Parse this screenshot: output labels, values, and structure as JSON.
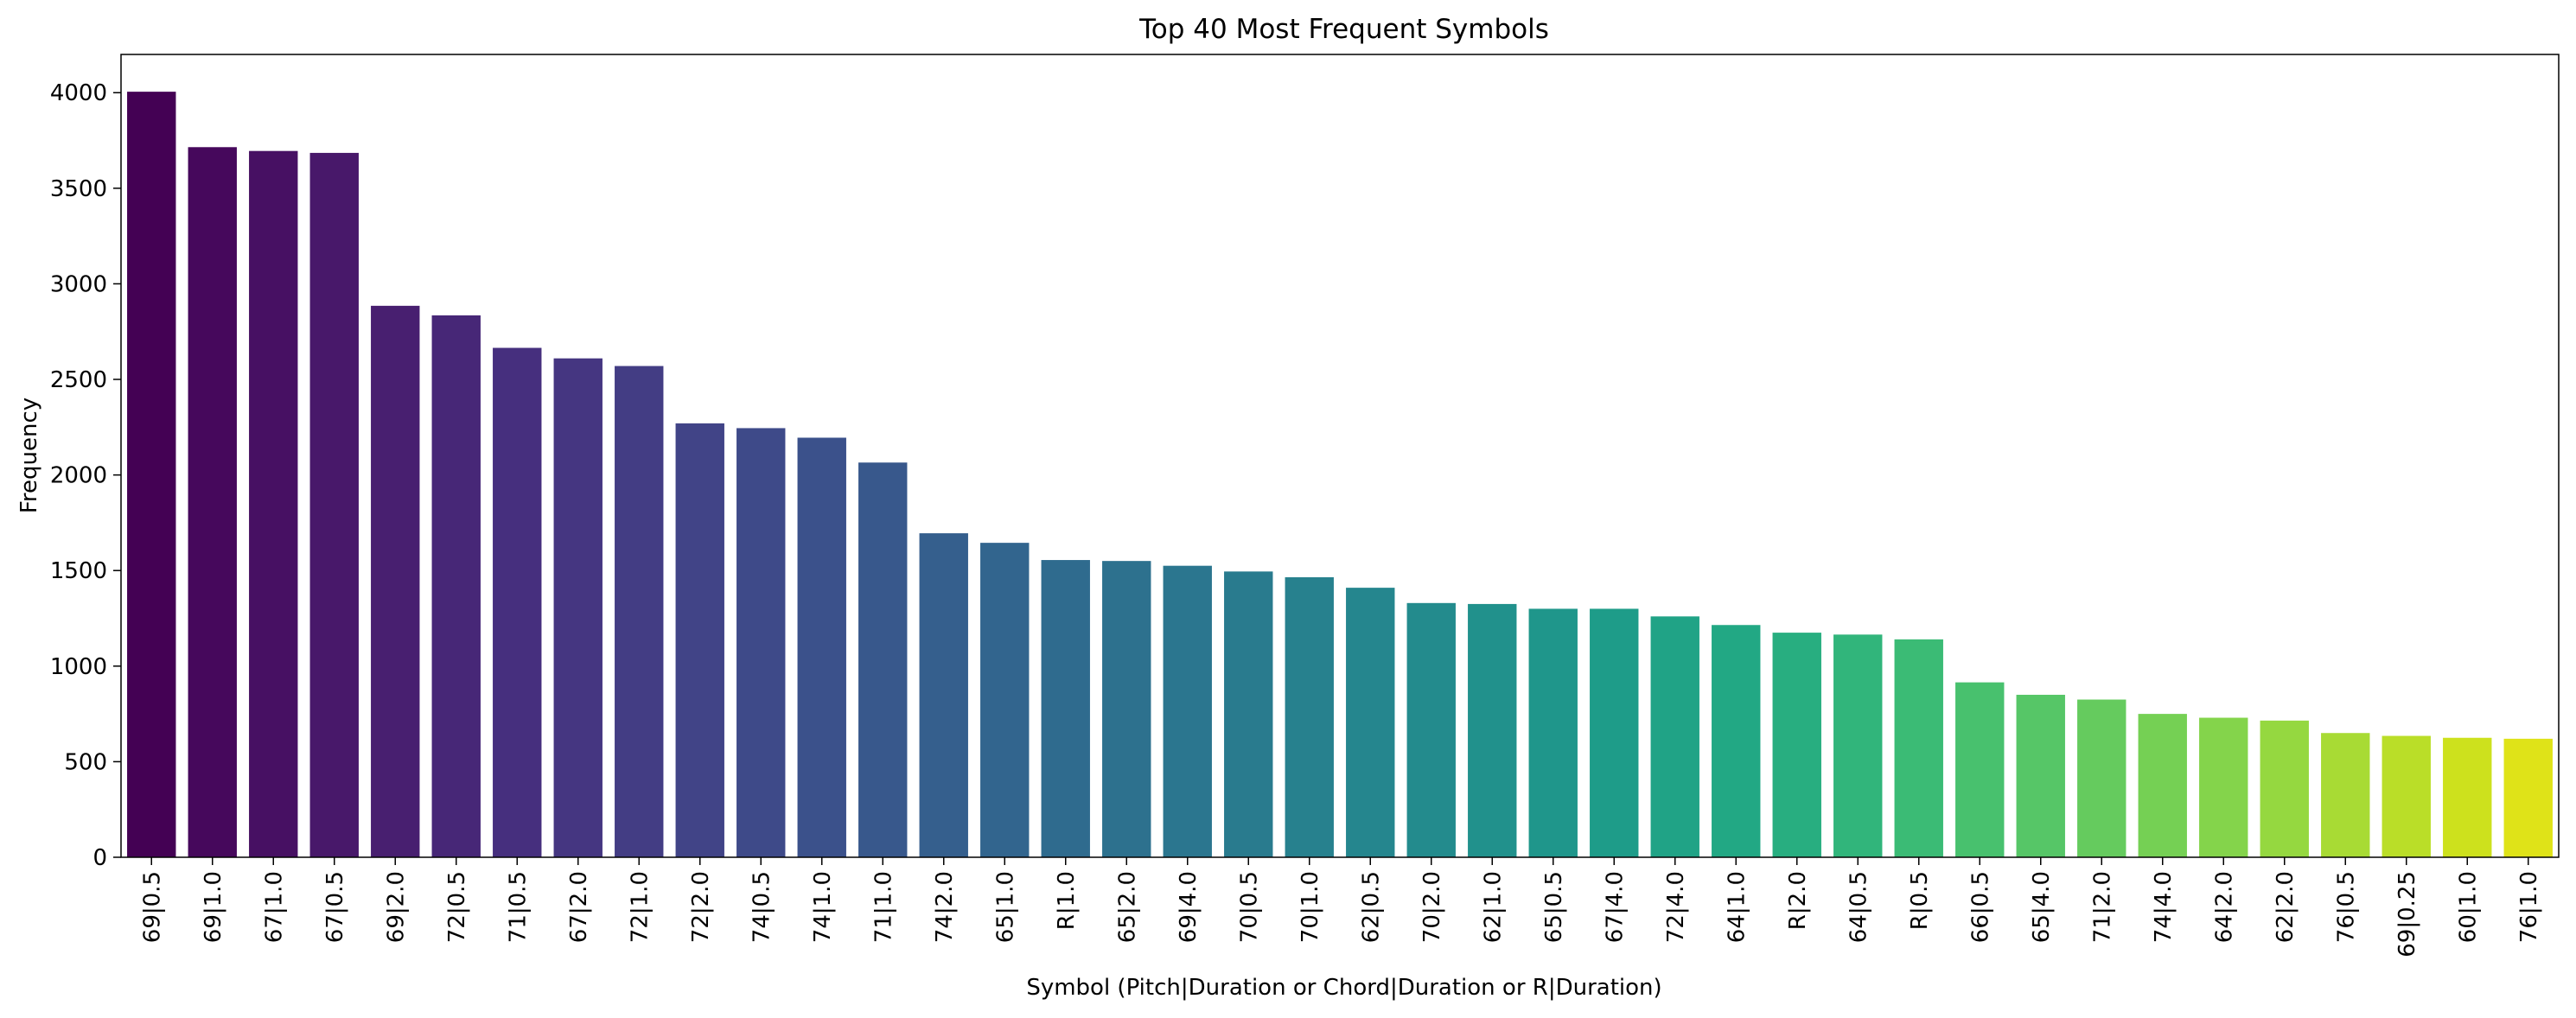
{
  "chart_data": {
    "type": "bar",
    "title": "Top 40 Most Frequent Symbols",
    "xlabel": "Symbol (Pitch|Duration or Chord|Duration or R|Duration)",
    "ylabel": "Frequency",
    "ylim": [
      0,
      4200
    ],
    "yticks": [
      0,
      500,
      1000,
      1500,
      2000,
      2500,
      3000,
      3500,
      4000
    ],
    "grid": false,
    "colormap": "viridis",
    "categories": [
      "69|0.5",
      "69|1.0",
      "67|1.0",
      "67|0.5",
      "69|2.0",
      "72|0.5",
      "71|0.5",
      "67|2.0",
      "72|1.0",
      "72|2.0",
      "74|0.5",
      "74|1.0",
      "71|1.0",
      "74|2.0",
      "65|1.0",
      "R|1.0",
      "65|2.0",
      "69|4.0",
      "70|0.5",
      "70|1.0",
      "62|0.5",
      "70|2.0",
      "62|1.0",
      "65|0.5",
      "67|4.0",
      "72|4.0",
      "64|1.0",
      "R|2.0",
      "64|0.5",
      "R|0.5",
      "66|0.5",
      "65|4.0",
      "71|2.0",
      "74|4.0",
      "64|2.0",
      "62|2.0",
      "76|0.5",
      "69|0.25",
      "60|1.0",
      "76|1.0"
    ],
    "values": [
      4005,
      3715,
      3695,
      3685,
      2885,
      2835,
      2665,
      2610,
      2570,
      2270,
      2245,
      2195,
      2065,
      1695,
      1645,
      1555,
      1550,
      1525,
      1495,
      1465,
      1410,
      1330,
      1325,
      1300,
      1300,
      1260,
      1215,
      1175,
      1165,
      1140,
      915,
      850,
      825,
      750,
      730,
      715,
      650,
      635,
      625,
      620
    ],
    "colors": [
      "#440154",
      "#46085c",
      "#471063",
      "#48186a",
      "#481f70",
      "#472777",
      "#462f7e",
      "#453681",
      "#433d84",
      "#414487",
      "#3e4a89",
      "#3b518b",
      "#38588c",
      "#355f8d",
      "#32658e",
      "#2f6b8e",
      "#2d718e",
      "#2b768f",
      "#297b8e",
      "#27818e",
      "#25868e",
      "#238b8d",
      "#21918c",
      "#1f968b",
      "#1e9c89",
      "#20a386",
      "#22a884",
      "#28ae80",
      "#31b57b",
      "#3bbb75",
      "#48c16e",
      "#56c667",
      "#65cb5e",
      "#75d054",
      "#84d44b",
      "#95d840",
      "#a8db34",
      "#bade28",
      "#cde11d",
      "#dfe318"
    ]
  }
}
